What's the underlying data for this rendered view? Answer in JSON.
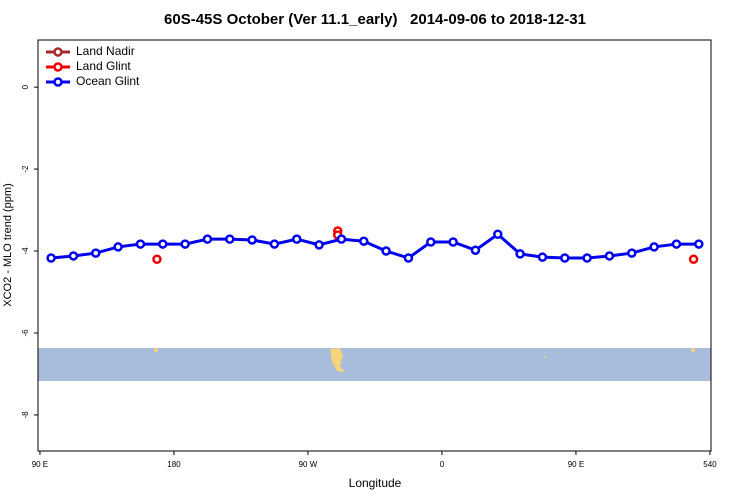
{
  "chart_data": {
    "type": "line",
    "title": "60S-45S October (Ver 11.1_early)   2014-09-06 to 2018-12-31",
    "xlabel": "Longitude",
    "ylabel": "XCO2 - MLO trend (ppm)",
    "xlim": [
      88.7,
      540.7
    ],
    "ylim": [
      -8.88,
      1.15
    ],
    "xticks": [
      {
        "value": 90,
        "label": "90 E"
      },
      180,
      {
        "value": 270,
        "label": "90 W"
      },
      {
        "value": 360,
        "label": "0"
      },
      {
        "value": 450,
        "label": "90 E"
      },
      540
    ],
    "yticks": [
      0,
      -2,
      -4,
      -6,
      -8
    ],
    "legend": "top-left",
    "series": [
      {
        "name": "Land Nadir",
        "color": "#a52a2a",
        "lines": true,
        "x": [],
        "values": []
      },
      {
        "name": "Land Glint",
        "color": "#ee0000",
        "lines": false,
        "x": [
          168.6,
          290,
          290,
          529
        ],
        "values": [
          -4.2,
          -3.51,
          -3.61,
          -4.2
        ]
      },
      {
        "name": "Ocean Glint",
        "color": "#0000ee",
        "lines": true,
        "x": [
          97.5,
          112.5,
          127.5,
          142.5,
          157.5,
          172.5,
          187.5,
          202.5,
          217.5,
          232.5,
          247.5,
          262.5,
          277.5,
          292.5,
          307.5,
          322.5,
          337.5,
          352.5,
          367.5,
          382.5,
          397.5,
          412.5,
          427.5,
          442.5,
          457.5,
          472.5,
          487.5,
          502.5,
          517.5,
          532.5
        ],
        "values": [
          -4.17,
          -4.12,
          -4.05,
          -3.9,
          -3.83,
          -3.83,
          -3.83,
          -3.71,
          -3.71,
          -3.73,
          -3.83,
          -3.71,
          -3.85,
          -3.71,
          -3.76,
          -4.0,
          -4.17,
          -3.78,
          -3.78,
          -3.98,
          -3.59,
          -4.07,
          -4.15,
          -4.17,
          -4.17,
          -4.12,
          -4.05,
          -3.9,
          -3.83,
          -3.83
        ]
      }
    ]
  }
}
